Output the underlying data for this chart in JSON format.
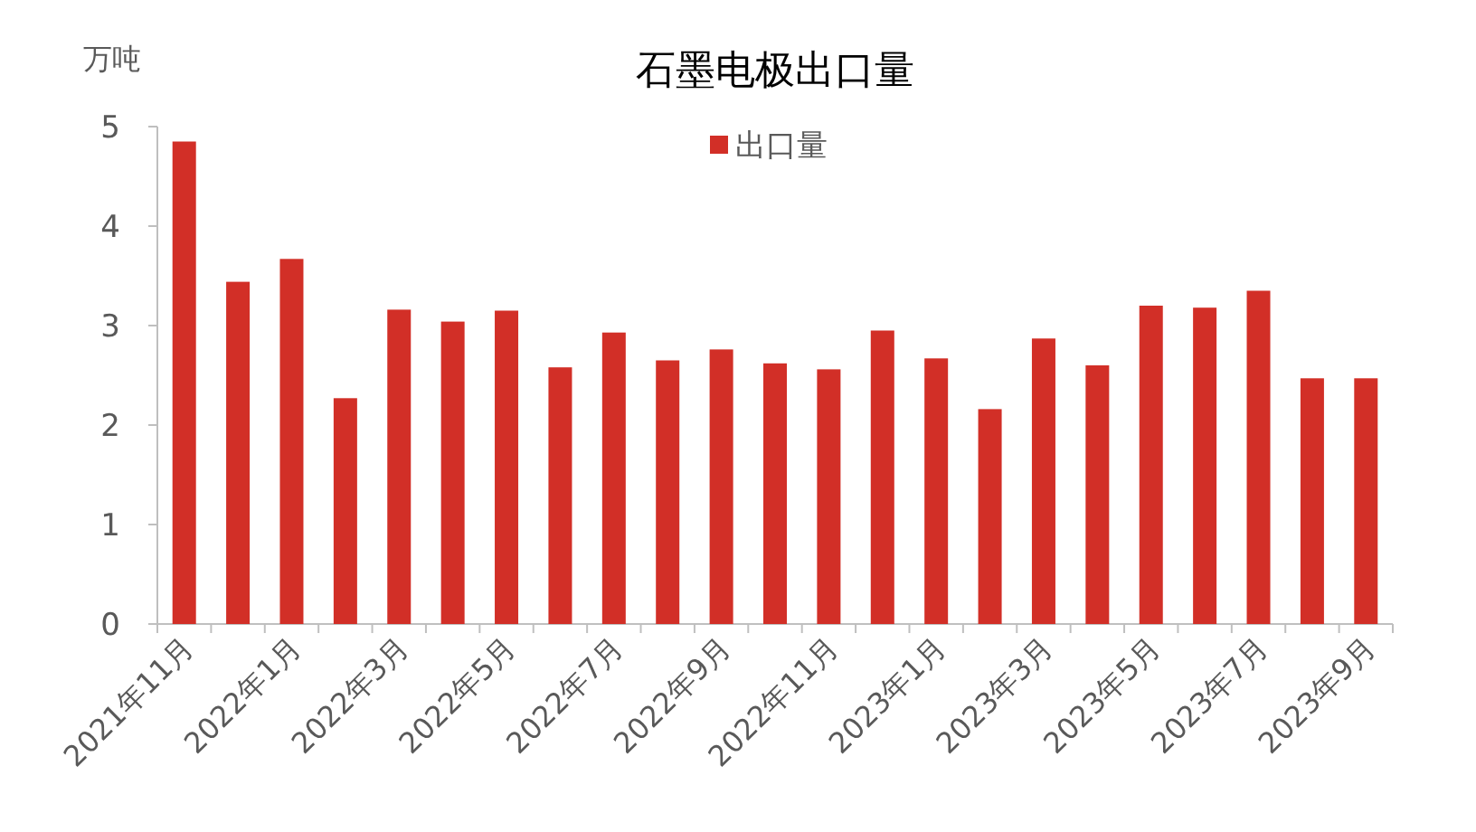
{
  "chart_data": {
    "type": "bar",
    "title": "石墨电极出口量",
    "ylabel": "万吨",
    "categories": [
      "2021年11月",
      null,
      "2022年1月",
      null,
      "2022年3月",
      null,
      "2022年5月",
      null,
      "2022年7月",
      null,
      "2022年9月",
      null,
      "2022年11月",
      null,
      "2023年1月",
      null,
      "2023年3月",
      null,
      "2023年5月",
      null,
      "2023年7月",
      null,
      "2023年9月"
    ],
    "series": [
      {
        "name": "出口量",
        "color": "#d22f27",
        "values": [
          4.85,
          3.44,
          3.67,
          2.27,
          3.16,
          3.04,
          3.15,
          2.58,
          2.93,
          2.65,
          2.76,
          2.62,
          2.56,
          2.95,
          2.67,
          2.16,
          2.87,
          2.6,
          3.2,
          3.18,
          3.35,
          2.47,
          2.47
        ]
      }
    ],
    "ylim": [
      0,
      5
    ],
    "yticks": [
      0,
      1,
      2,
      3,
      4,
      5
    ],
    "legend": "top",
    "grid": false
  }
}
